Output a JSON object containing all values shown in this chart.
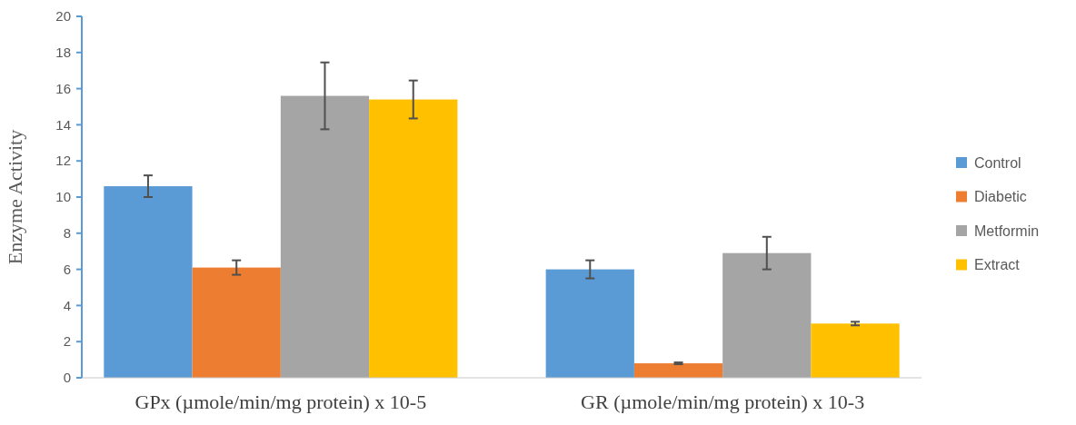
{
  "chart_data": {
    "type": "bar",
    "ylabel": "Enzyme Activity",
    "categories": [
      "GPx (µmole/min/mg protein) x 10-5",
      "GR (µmole/min/mg protein) x 10-3"
    ],
    "series": [
      {
        "name": "Control",
        "color": "#5b9bd5",
        "values": [
          10.6,
          6.0
        ],
        "errors": [
          0.6,
          0.5
        ]
      },
      {
        "name": "Diabetic",
        "color": "#ed7d31",
        "values": [
          6.1,
          0.8
        ],
        "errors": [
          0.4,
          0.05
        ]
      },
      {
        "name": "Metformin",
        "color": "#a5a5a5",
        "values": [
          15.6,
          6.9
        ],
        "errors": [
          1.85,
          0.9
        ]
      },
      {
        "name": "Extract",
        "color": "#ffc000",
        "values": [
          15.4,
          3.0
        ],
        "errors": [
          1.05,
          0.1
        ]
      }
    ],
    "ylim": [
      0,
      20
    ],
    "yticks": [
      0,
      2,
      4,
      6,
      8,
      10,
      12,
      14,
      16,
      18,
      20
    ],
    "grid": false,
    "legend": "right"
  }
}
